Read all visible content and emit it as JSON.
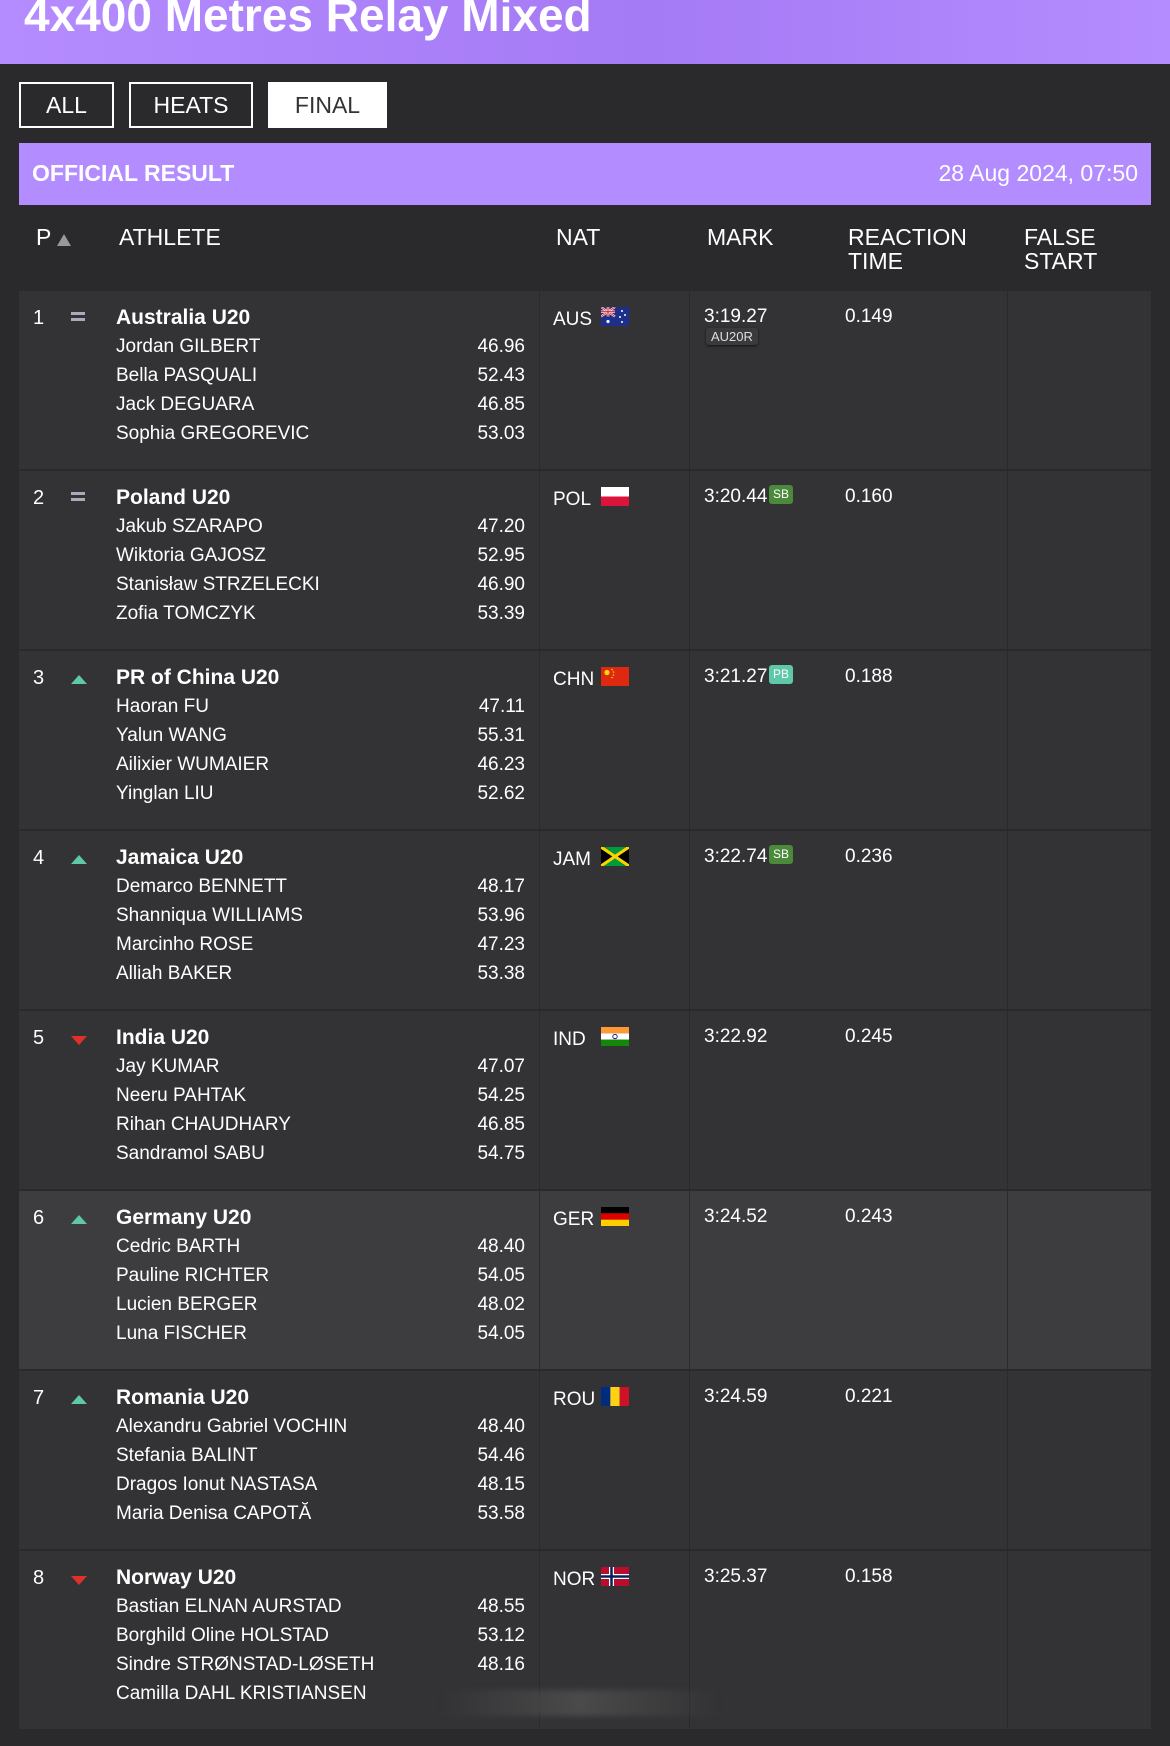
{
  "header": {
    "title": "4x400 Metres Relay Mixed"
  },
  "filters": [
    {
      "label": "ALL",
      "active": false
    },
    {
      "label": "HEATS",
      "active": false
    },
    {
      "label": "FINAL",
      "active": true
    }
  ],
  "result": {
    "label": "OFFICIAL RESULT",
    "date": "28 Aug 2024, 07:50"
  },
  "columns": {
    "p": "P",
    "athlete": "ATHLETE",
    "nat": "NAT",
    "mark": "MARK",
    "reaction1": "REACTION",
    "reaction2": "TIME",
    "false1": "FALSE",
    "false2": "START"
  },
  "colors": {
    "accent": "#b38cff",
    "sb": "#4a8a3a",
    "pb": "#5ec8a8",
    "up": "#5ec8a8",
    "down": "#e0302a"
  },
  "rows": [
    {
      "pos": "1",
      "trend": "equal",
      "team": "Australia U20",
      "nat": "AUS",
      "flag": "australia-flag-icon",
      "mark": "3:19.27",
      "badge": "",
      "record": "AU20R",
      "reaction": "0.149",
      "athletes": [
        {
          "name": "Jordan GILBERT",
          "split": "46.96"
        },
        {
          "name": "Bella PASQUALI",
          "split": "52.43"
        },
        {
          "name": "Jack DEGUARA",
          "split": "46.85"
        },
        {
          "name": "Sophia GREGOREVIC",
          "split": "53.03"
        }
      ]
    },
    {
      "pos": "2",
      "trend": "equal",
      "team": "Poland U20",
      "nat": "POL",
      "flag": "poland-flag-icon",
      "mark": "3:20.44",
      "badge": "SB",
      "record": "",
      "reaction": "0.160",
      "athletes": [
        {
          "name": "Jakub SZARAPO",
          "split": "47.20"
        },
        {
          "name": "Wiktoria GAJOSZ",
          "split": "52.95"
        },
        {
          "name": "Stanisław STRZELECKI",
          "split": "46.90"
        },
        {
          "name": "Zofia TOMCZYK",
          "split": "53.39"
        }
      ]
    },
    {
      "pos": "3",
      "trend": "up",
      "team": "PR of China U20",
      "nat": "CHN",
      "flag": "china-flag-icon",
      "mark": "3:21.27",
      "badge": "PB",
      "record": "",
      "reaction": "0.188",
      "athletes": [
        {
          "name": "Haoran FU",
          "split": "47.11"
        },
        {
          "name": "Yalun WANG",
          "split": "55.31"
        },
        {
          "name": "Ailixier WUMAIER",
          "split": "46.23"
        },
        {
          "name": "Yinglan LIU",
          "split": "52.62"
        }
      ]
    },
    {
      "pos": "4",
      "trend": "up",
      "team": "Jamaica U20",
      "nat": "JAM",
      "flag": "jamaica-flag-icon",
      "mark": "3:22.74",
      "badge": "SB",
      "record": "",
      "reaction": "0.236",
      "athletes": [
        {
          "name": "Demarco BENNETT",
          "split": "48.17"
        },
        {
          "name": "Shanniqua WILLIAMS",
          "split": "53.96"
        },
        {
          "name": "Marcinho ROSE",
          "split": "47.23"
        },
        {
          "name": "Alliah BAKER",
          "split": "53.38"
        }
      ]
    },
    {
      "pos": "5",
      "trend": "down",
      "team": "India U20",
      "nat": "IND",
      "flag": "india-flag-icon",
      "mark": "3:22.92",
      "badge": "",
      "record": "",
      "reaction": "0.245",
      "athletes": [
        {
          "name": "Jay KUMAR",
          "split": "47.07"
        },
        {
          "name": "Neeru PAHTAK",
          "split": "54.25"
        },
        {
          "name": "Rihan CHAUDHARY",
          "split": "46.85"
        },
        {
          "name": "Sandramol SABU",
          "split": "54.75"
        }
      ]
    },
    {
      "pos": "6",
      "trend": "up",
      "team": "Germany U20",
      "nat": "GER",
      "flag": "germany-flag-icon",
      "mark": "3:24.52",
      "badge": "",
      "record": "",
      "reaction": "0.243",
      "athletes": [
        {
          "name": "Cedric BARTH",
          "split": "48.40"
        },
        {
          "name": "Pauline RICHTER",
          "split": "54.05"
        },
        {
          "name": "Lucien BERGER",
          "split": "48.02"
        },
        {
          "name": "Luna FISCHER",
          "split": "54.05"
        }
      ]
    },
    {
      "pos": "7",
      "trend": "up",
      "team": "Romania U20",
      "nat": "ROU",
      "flag": "romania-flag-icon",
      "mark": "3:24.59",
      "badge": "",
      "record": "",
      "reaction": "0.221",
      "athletes": [
        {
          "name": "Alexandru Gabriel VOCHIN",
          "split": "48.40"
        },
        {
          "name": "Stefania BALINT",
          "split": "54.46"
        },
        {
          "name": "Dragos Ionut NASTASA",
          "split": "48.15"
        },
        {
          "name": "Maria Denisa CAPOTĂ",
          "split": "53.58"
        }
      ]
    },
    {
      "pos": "8",
      "trend": "down",
      "team": "Norway U20",
      "nat": "NOR",
      "flag": "norway-flag-icon",
      "mark": "3:25.37",
      "badge": "",
      "record": "",
      "reaction": "0.158",
      "athletes": [
        {
          "name": "Bastian ELNAN AURSTAD",
          "split": "48.55"
        },
        {
          "name": "Borghild Oline HOLSTAD",
          "split": "53.12"
        },
        {
          "name": "Sindre STRØNSTAD-LØSETH",
          "split": "48.16"
        },
        {
          "name": "Camilla DAHL KRISTIANSEN",
          "split": ""
        }
      ]
    }
  ]
}
